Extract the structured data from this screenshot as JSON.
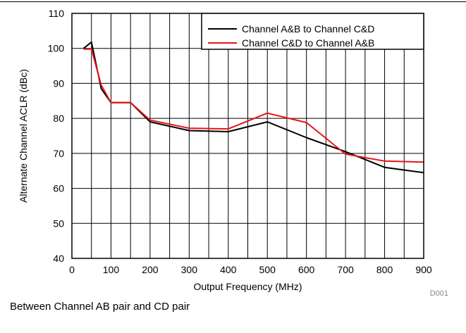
{
  "caption": "Between Channel AB pair and CD pair",
  "figure_id": "D001",
  "chart_data": {
    "type": "line",
    "title": "",
    "xlabel": "Output Frequency (MHz)",
    "ylabel": "Alternate Channel ACLR (dBc)",
    "xlim": [
      0,
      900
    ],
    "ylim": [
      40,
      110
    ],
    "x_ticks": [
      0,
      100,
      200,
      300,
      400,
      500,
      600,
      700,
      800,
      900
    ],
    "y_ticks": [
      40,
      50,
      60,
      70,
      80,
      90,
      100,
      110
    ],
    "x_grid_step": 50,
    "y_grid_step": 10,
    "grid": true,
    "legend_position": "top-right",
    "series": [
      {
        "name": "Channel A&B to Channel C&D",
        "color": "#000000",
        "x": [
          30,
          50,
          75,
          100,
          150,
          200,
          300,
          400,
          500,
          600,
          700,
          800,
          900
        ],
        "y": [
          100,
          101.8,
          88.5,
          84.5,
          84.5,
          79,
          76.5,
          76.2,
          79,
          74.5,
          70.5,
          66,
          64.5
        ]
      },
      {
        "name": "Channel C&D to Channel A&B",
        "color": "#e8141a",
        "x": [
          30,
          50,
          75,
          100,
          150,
          200,
          300,
          400,
          500,
          600,
          700,
          800,
          900
        ],
        "y": [
          99.8,
          99.8,
          89.5,
          84.5,
          84.5,
          79.5,
          77.2,
          77,
          81.5,
          78.8,
          69.8,
          67.8,
          67.5
        ]
      }
    ]
  }
}
